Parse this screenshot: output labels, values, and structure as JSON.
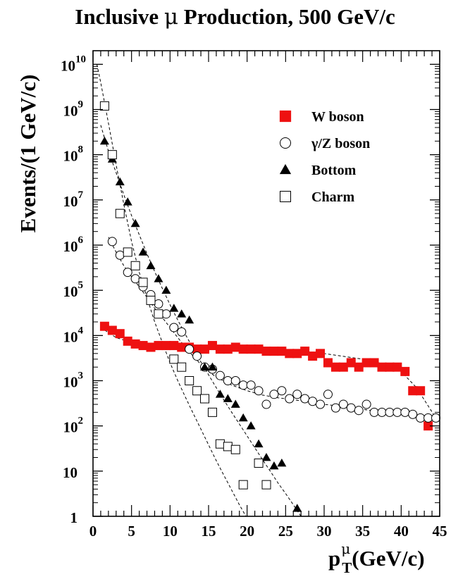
{
  "chart_data": {
    "type": "scatter",
    "title_prefix": "Inclusive ",
    "title_symbol": "μ",
    "title_suffix": " Production, 500 GeV/c",
    "xlabel_base": "p",
    "xlabel_sup": "μ",
    "xlabel_sub": "T",
    "xlabel_tail": "(GeV/c)",
    "ylabel": "Events/(1 GeV/c)",
    "xlim": [
      0,
      45
    ],
    "ylim": [
      1,
      20000000000
    ],
    "y_scale": "log",
    "x_ticks": [
      "0",
      "5",
      "10",
      "15",
      "20",
      "25",
      "30",
      "35",
      "40",
      "45"
    ],
    "y_ticks": [
      {
        "value": 1,
        "base": "1",
        "exp": ""
      },
      {
        "value": 10,
        "base": "10",
        "exp": ""
      },
      {
        "value": 100,
        "base": "10",
        "exp": "2"
      },
      {
        "value": 1000,
        "base": "10",
        "exp": "3"
      },
      {
        "value": 10000,
        "base": "10",
        "exp": "4"
      },
      {
        "value": 100000,
        "base": "10",
        "exp": "5"
      },
      {
        "value": 1000000,
        "base": "10",
        "exp": "6"
      },
      {
        "value": 10000000,
        "base": "10",
        "exp": "7"
      },
      {
        "value": 100000000,
        "base": "10",
        "exp": "8"
      },
      {
        "value": 1000000000,
        "base": "10",
        "exp": "9"
      },
      {
        "value": 10000000000,
        "base": "10",
        "exp": "10"
      }
    ],
    "legend_position": "top-right",
    "colors": {
      "w_boson": "#ee1111",
      "markers": "#000000",
      "fit_lines": "#000000"
    },
    "series": [
      {
        "name": "W boson",
        "marker": "filled-square",
        "x": [
          1.5,
          2.5,
          3.5,
          4.5,
          5.5,
          6.5,
          7.5,
          8.5,
          9.5,
          10.5,
          11.5,
          12.5,
          13.5,
          14.5,
          15.5,
          16.5,
          17.5,
          18.5,
          19.5,
          20.5,
          21.5,
          22.5,
          23.5,
          24.5,
          25.5,
          26.5,
          27.5,
          28.5,
          29.5,
          30.5,
          31.5,
          32.5,
          33.5,
          34.5,
          35.5,
          36.5,
          37.5,
          38.5,
          39.5,
          40.5,
          41.5,
          42.5,
          43.5
        ],
        "y": [
          16000,
          13000,
          11000,
          7500,
          6500,
          6000,
          5500,
          6000,
          6000,
          6000,
          5500,
          5500,
          5000,
          5000,
          6000,
          5000,
          5000,
          5500,
          5000,
          5000,
          5000,
          4500,
          4500,
          4500,
          4000,
          4000,
          4500,
          3500,
          4000,
          2500,
          2000,
          2000,
          2500,
          2000,
          2500,
          2500,
          2000,
          2000,
          2000,
          1600,
          600,
          600,
          100
        ]
      },
      {
        "name": "γ/Z boson",
        "marker": "open-circle",
        "x": [
          2.5,
          3.5,
          4.5,
          5.5,
          6.5,
          7.5,
          8.5,
          9.5,
          10.5,
          11.5,
          12.5,
          13.5,
          14.5,
          15.5,
          16.5,
          17.5,
          18.5,
          19.5,
          20.5,
          21.5,
          22.5,
          23.5,
          24.5,
          25.5,
          26.5,
          27.5,
          28.5,
          29.5,
          30.5,
          31.5,
          32.5,
          33.5,
          34.5,
          35.5,
          36.5,
          37.5,
          38.5,
          39.5,
          40.5,
          41.5,
          42.5,
          43.5,
          44.5
        ],
        "y": [
          1200000,
          600000,
          250000,
          180000,
          120000,
          80000,
          50000,
          30000,
          15000,
          12000,
          5000,
          3500,
          2000,
          1800,
          1300,
          1000,
          1000,
          800,
          800,
          600,
          300,
          500,
          600,
          400,
          500,
          400,
          350,
          300,
          500,
          250,
          300,
          250,
          220,
          300,
          200,
          200,
          200,
          200,
          200,
          180,
          150,
          150,
          150
        ]
      },
      {
        "name": "Bottom",
        "marker": "filled-triangle",
        "x": [
          1.5,
          2.5,
          3.5,
          4.5,
          5.5,
          6.5,
          7.5,
          8.5,
          9.5,
          10.5,
          11.5,
          12.5,
          14.5,
          15.5,
          16.5,
          17.5,
          18.5,
          19.5,
          20.5,
          21.5,
          22.5,
          23.5,
          24.5,
          26.5
        ],
        "y": [
          200000000,
          80000000,
          25000000,
          9000000,
          3000000,
          700000,
          350000,
          180000,
          100000,
          40000,
          30000,
          22000,
          2000,
          2000,
          500,
          400,
          300,
          150,
          100,
          40,
          20,
          13,
          15,
          1.5
        ]
      },
      {
        "name": "Charm",
        "marker": "open-square",
        "x": [
          1.5,
          2.5,
          3.5,
          4.5,
          5.5,
          6.5,
          7.5,
          8.5,
          10.5,
          11.5,
          12.5,
          13.5,
          14.5,
          15.5,
          16.5,
          17.5,
          18.5,
          19.5,
          21.5,
          22.5
        ],
        "y": [
          1200000000,
          100000000,
          5000000,
          700000,
          350000,
          150000,
          60000,
          30000,
          3000,
          2000,
          1000,
          600,
          400,
          200,
          40,
          35,
          30,
          5,
          15,
          5
        ]
      }
    ],
    "fit_curves": [
      {
        "name": "W boson fit",
        "x": [
          1,
          3,
          5,
          7,
          10,
          13,
          16,
          20,
          25,
          30,
          35,
          38,
          40,
          42,
          44.5
        ],
        "y": [
          15000,
          9000,
          7000,
          6000,
          5700,
          5500,
          5300,
          5000,
          4500,
          4000,
          3000,
          2300,
          1600,
          700,
          150
        ]
      },
      {
        "name": "γ/Z boson fit",
        "x": [
          2,
          3,
          4,
          5,
          6,
          7,
          8,
          9,
          10,
          11,
          12,
          13,
          14,
          15,
          16,
          18,
          20,
          22,
          24,
          26,
          28,
          30,
          33,
          36,
          40,
          44.5
        ],
        "y": [
          1500000,
          700000,
          350000,
          200000,
          120000,
          70000,
          40000,
          25000,
          15000,
          9000,
          5500,
          3500,
          2300,
          1600,
          1200,
          800,
          600,
          480,
          420,
          380,
          340,
          300,
          260,
          220,
          190,
          150
        ]
      },
      {
        "name": "Bottom fit",
        "x": [
          1,
          2,
          3,
          4,
          5,
          6,
          7,
          8,
          9,
          10,
          11,
          12,
          13,
          14,
          15,
          16,
          17,
          18,
          19,
          20,
          21,
          22,
          23,
          24,
          25,
          26,
          27
        ],
        "y": [
          450000000,
          120000000,
          40000000,
          13000000,
          4500000,
          1700000,
          650000,
          260000,
          110000,
          48000,
          22000,
          10500,
          5200,
          2600,
          1350,
          700,
          370,
          200,
          110,
          60,
          33,
          18,
          10,
          5.5,
          3.2,
          1.8,
          1
        ]
      },
      {
        "name": "Charm fit",
        "x": [
          0.5,
          1,
          2,
          3,
          4,
          5,
          6,
          7,
          8,
          9,
          10,
          11,
          12,
          13,
          14,
          15,
          16,
          17,
          18,
          19,
          20,
          21,
          22
        ],
        "y": [
          10000000000,
          4000000000,
          500000000,
          60000000,
          8000000,
          1200000,
          250000,
          70000,
          20000,
          7000,
          2500,
          1000,
          430,
          190,
          85,
          38,
          17,
          8,
          3.8,
          1.8,
          0.9,
          0.45,
          0.22
        ]
      }
    ]
  }
}
